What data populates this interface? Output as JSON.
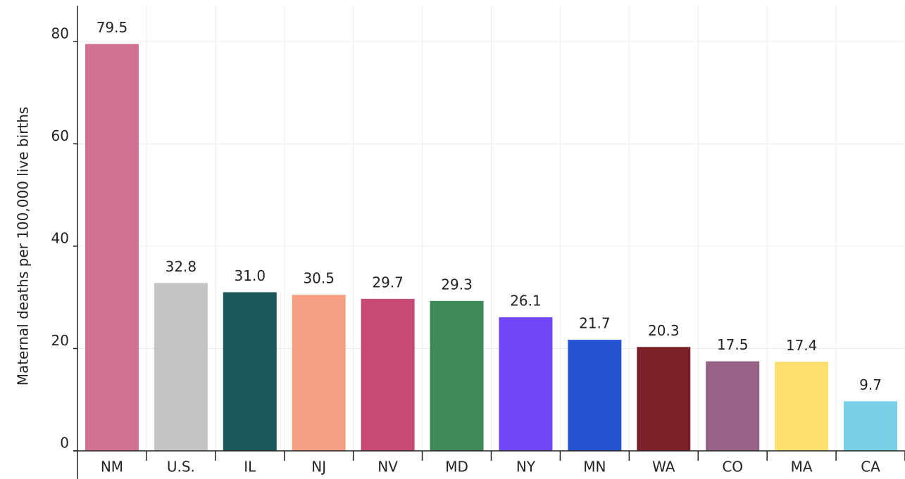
{
  "chart_data": {
    "type": "bar",
    "y_label": "Maternal deaths per 100,000 live births",
    "categories": [
      "NM",
      "U.S.",
      "IL",
      "NJ",
      "NV",
      "MD",
      "NY",
      "MN",
      "WA",
      "CO",
      "MA",
      "CA"
    ],
    "values": [
      79.5,
      32.8,
      31.0,
      30.5,
      29.7,
      29.3,
      26.1,
      21.7,
      20.3,
      17.5,
      17.4,
      9.7
    ],
    "value_labels": [
      "79.5",
      "32.8",
      "31.0",
      "30.5",
      "29.7",
      "29.3",
      "26.1",
      "21.7",
      "20.3",
      "17.5",
      "17.4",
      "9.7"
    ],
    "colors": [
      "#d27293",
      "#c4c4c4",
      "#1b5859",
      "#f6a083",
      "#c84a72",
      "#3d8a56",
      "#7048f8",
      "#2352d3",
      "#7a2029",
      "#966386",
      "#fbe070",
      "#79cfe7"
    ],
    "ylim": [
      0,
      87
    ],
    "yticks": [
      0,
      20,
      40,
      60,
      80
    ],
    "grid": true
  }
}
